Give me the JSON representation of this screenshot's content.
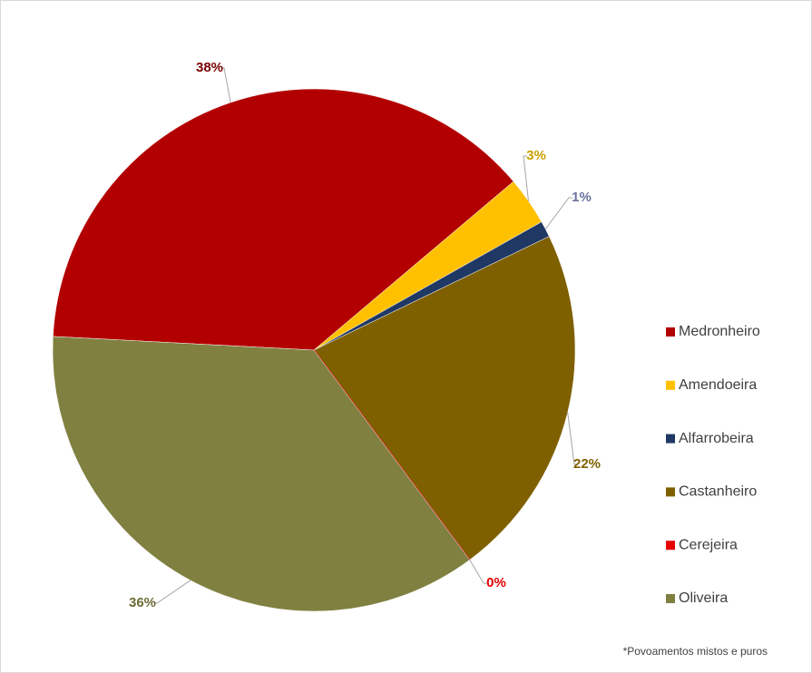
{
  "chart_data": {
    "type": "pie",
    "categories": [
      "Medronheiro",
      "Amendoeira",
      "Alfarrobeira",
      "Castanheiro",
      "Cerejeira",
      "Oliveira"
    ],
    "values": [
      38,
      3,
      1,
      22,
      0,
      36
    ],
    "value_labels": [
      "38%",
      "3%",
      "1%",
      "22%",
      "0%",
      "36%"
    ],
    "colors": [
      "#b20000",
      "#ffc000",
      "#1f3864",
      "#7f6000",
      "#e60000",
      "#808040"
    ],
    "label_colors": [
      "#7a0000",
      "#c8a000",
      "#6a72a0",
      "#7f6000",
      "#e60000",
      "#6b6b35"
    ],
    "start_angle": 273,
    "legend": "right",
    "footnote": "*Povoamentos mistos e puros"
  }
}
